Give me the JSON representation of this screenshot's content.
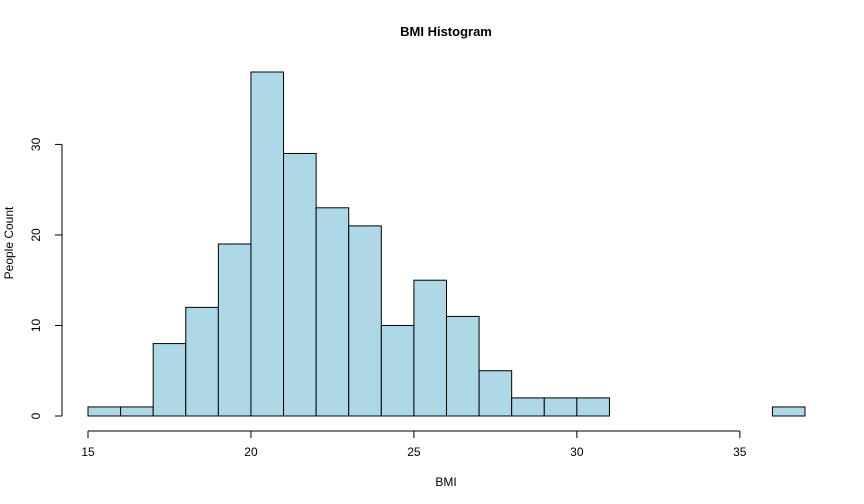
{
  "chart_data": {
    "type": "bar",
    "title": "BMI Histogram",
    "xlabel": "BMI",
    "ylabel": "People Count",
    "bar_color": "#add8e6",
    "edge_color": "#000000",
    "bin_width": 1,
    "bin_starts": [
      15,
      16,
      17,
      18,
      19,
      20,
      21,
      22,
      23,
      24,
      25,
      26,
      27,
      28,
      29,
      30,
      31,
      32,
      33,
      34,
      35,
      36
    ],
    "counts": [
      1,
      1,
      8,
      12,
      19,
      38,
      29,
      23,
      21,
      10,
      15,
      11,
      5,
      2,
      2,
      2,
      0,
      0,
      0,
      0,
      0,
      1
    ],
    "xlim": [
      15,
      37
    ],
    "ylim": [
      0,
      38
    ],
    "x_ticks": [
      15,
      20,
      25,
      30,
      35
    ],
    "y_ticks": [
      0,
      10,
      20,
      30
    ],
    "grid": false
  }
}
